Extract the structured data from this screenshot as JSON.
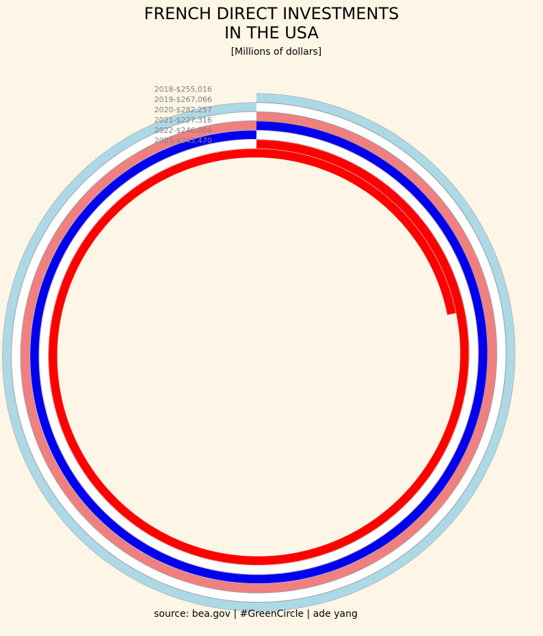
{
  "title_line1": "FRENCH DIRECT INVESTMENTS",
  "title_line2": "IN THE USA",
  "subtitle": "[Millions of dollars]",
  "source": "source: bea.gov | #GreenCircle | ade yang",
  "chart_data": {
    "type": "spiral-bar",
    "unit": "Millions of dollars",
    "categories": [
      "2018",
      "2019",
      "2020",
      "2021",
      "2022",
      "2023"
    ],
    "labels": [
      "2018-$255,016",
      "2019-$267,066",
      "2020-$282,257",
      "2021-$227,316",
      "2022-$246,004",
      "2023-$243,470"
    ],
    "values": [
      255016,
      267066,
      282257,
      227316,
      246004,
      243470
    ],
    "colors": [
      "#add8e6",
      "#ffffff",
      "#f08080",
      "#0000ee",
      "#ffffff",
      "#ff0000"
    ],
    "turn_value": 200000
  }
}
